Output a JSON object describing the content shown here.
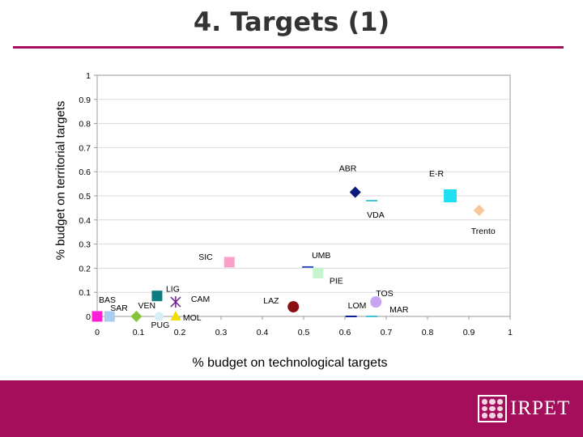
{
  "slide": {
    "title": "4. Targets (1)",
    "brand": "IRPET",
    "colors": {
      "accent": "#a50e5a",
      "plot_border": "#999999",
      "grid": "#d9d9d9"
    }
  },
  "chart_data": {
    "type": "scatter",
    "title": "",
    "xlabel": "% budget on technological targets",
    "ylabel": "% budget on territorial targets",
    "xlim": [
      0,
      1
    ],
    "ylim": [
      0,
      1
    ],
    "x_ticks": [
      "0",
      "0.1",
      "0.2",
      "0.3",
      "0.4",
      "0.5",
      "0.6",
      "0.7",
      "0.8",
      "0.9",
      "1"
    ],
    "y_ticks": [
      "0",
      "0.1",
      "0.2",
      "0.3",
      "0.4",
      "0.5",
      "0.6",
      "0.7",
      "0.8",
      "0.9",
      "1"
    ],
    "grid": "horizontal",
    "points": [
      {
        "label": "ABR",
        "x": 0.625,
        "y": 0.515,
        "marker": "diamond",
        "color": "#0a1a7a",
        "label_dx": -20,
        "label_dy": -26,
        "anchor": "start"
      },
      {
        "label": "E-R",
        "x": 0.855,
        "y": 0.5,
        "marker": "square-lg",
        "color": "#1fe0f0",
        "label_dx": -26,
        "label_dy": -24,
        "anchor": "start"
      },
      {
        "label": "VDA",
        "x": 0.665,
        "y": 0.48,
        "marker": "dash",
        "color": "#3fc5d4",
        "label_dx": -6,
        "label_dy": 21,
        "anchor": "start"
      },
      {
        "label": "Trento",
        "x": 0.925,
        "y": 0.44,
        "marker": "diamond",
        "color": "#f5c89a",
        "label_dx": -10,
        "label_dy": 29,
        "anchor": "start"
      },
      {
        "label": "SIC",
        "x": 0.32,
        "y": 0.225,
        "marker": "square",
        "color": "#f8a0c8",
        "label_dx": -38,
        "label_dy": -3,
        "anchor": "start"
      },
      {
        "label": "UMB",
        "x": 0.51,
        "y": 0.205,
        "marker": "dash",
        "color": "#3050c0",
        "label_dx": 5,
        "label_dy": -11,
        "anchor": "start"
      },
      {
        "label": "PIE",
        "x": 0.535,
        "y": 0.18,
        "marker": "square",
        "color": "#c6f4cc",
        "label_dx": 14,
        "label_dy": 13,
        "anchor": "start"
      },
      {
        "label": "TOS",
        "x": 0.675,
        "y": 0.06,
        "marker": "circle",
        "color": "#c8a4f2",
        "label_dx": 0,
        "label_dy": -7,
        "anchor": "start"
      },
      {
        "label": "LAZ",
        "x": 0.475,
        "y": 0.04,
        "marker": "circle",
        "color": "#8a0e14",
        "label_dx": -37,
        "label_dy": -4,
        "anchor": "start"
      },
      {
        "label": "LOM",
        "x": 0.615,
        "y": 0.0,
        "marker": "dash",
        "color": "#1020a0",
        "label_dx": -4,
        "label_dy": -10,
        "anchor": "start"
      },
      {
        "label": "MAR",
        "x": 0.665,
        "y": 0.0,
        "marker": "dash",
        "color": "#3fc5d4",
        "label_dx": 22,
        "label_dy": -5,
        "anchor": "start"
      },
      {
        "label": "LIG",
        "x": 0.145,
        "y": 0.085,
        "marker": "square",
        "color": "#0e7c80",
        "label_dx": 11,
        "label_dy": -5,
        "anchor": "start"
      },
      {
        "label": "CAM",
        "x": 0.19,
        "y": 0.06,
        "marker": "cross",
        "color": "#6a1f8a",
        "label_dx": 19,
        "label_dy": 0,
        "anchor": "start"
      },
      {
        "label": "BAS",
        "x": 0.0,
        "y": 0.0,
        "marker": "square",
        "color": "#ff1ed8",
        "label_dx": 2,
        "label_dy": -17,
        "anchor": "start"
      },
      {
        "label": "SAR",
        "x": 0.03,
        "y": 0.0,
        "marker": "square",
        "color": "#a8cdf0",
        "label_dx": 1,
        "label_dy": -7,
        "anchor": "start"
      },
      {
        "label": "VEN",
        "x": 0.095,
        "y": 0.0,
        "marker": "diamond",
        "color": "#86c43a",
        "label_dx": 2,
        "label_dy": -10,
        "anchor": "start"
      },
      {
        "label": "PUG",
        "x": 0.15,
        "y": 0.0,
        "marker": "circle-sm",
        "color": "#d6eef6",
        "label_dx": -10,
        "label_dy": 14,
        "anchor": "start"
      },
      {
        "label": "MOL",
        "x": 0.19,
        "y": 0.0,
        "marker": "triangle",
        "color": "#f0e000",
        "label_dx": 9,
        "label_dy": 5,
        "anchor": "start"
      }
    ]
  }
}
